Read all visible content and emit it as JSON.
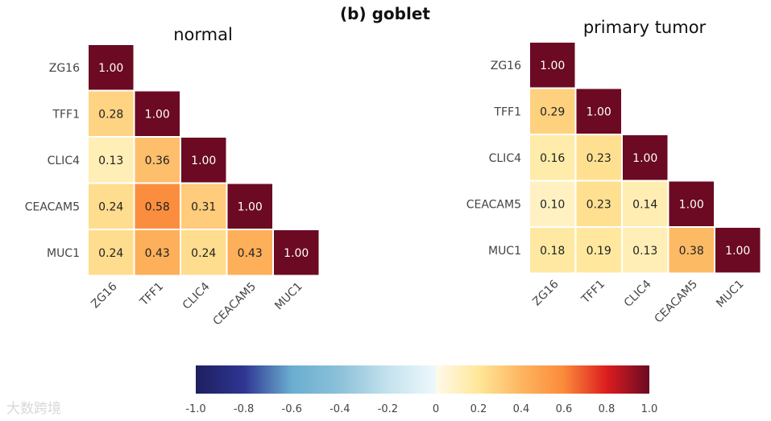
{
  "chart_data": {
    "type": "heatmap",
    "title": "(b) goblet",
    "genes": [
      "ZG16",
      "TFF1",
      "CLIC4",
      "CEACAM5",
      "MUC1"
    ],
    "panels": [
      {
        "title": "normal",
        "matrix": [
          [
            1.0
          ],
          [
            0.28,
            1.0
          ],
          [
            0.13,
            0.36,
            1.0
          ],
          [
            0.24,
            0.58,
            0.31,
            1.0
          ],
          [
            0.24,
            0.43,
            0.24,
            0.43,
            1.0
          ]
        ]
      },
      {
        "title": "primary tumor",
        "matrix": [
          [
            1.0
          ],
          [
            0.29,
            1.0
          ],
          [
            0.16,
            0.23,
            1.0
          ],
          [
            0.1,
            0.23,
            0.14,
            1.0
          ],
          [
            0.18,
            0.19,
            0.13,
            0.38,
            1.0
          ]
        ]
      }
    ],
    "colorbar": {
      "range": [
        -1.0,
        1.0
      ],
      "ticks": [
        "-1.0",
        "-0.8",
        "-0.6",
        "-0.4",
        "-0.2",
        "0",
        "0.2",
        "0.4",
        "0.6",
        "0.8",
        "1.0"
      ]
    }
  },
  "watermark": "大数跨境"
}
